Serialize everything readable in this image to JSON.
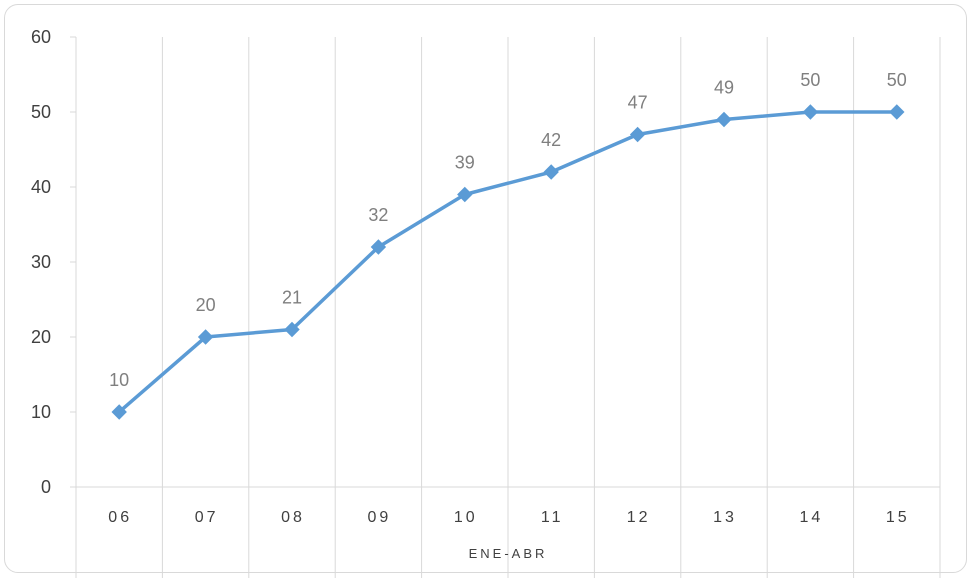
{
  "chart_data": {
    "type": "line",
    "title": "",
    "xlabel": "ENE-ABR",
    "ylabel": "",
    "categories": [
      "06",
      "07",
      "08",
      "09",
      "10",
      "11",
      "12",
      "13",
      "14",
      "15"
    ],
    "series": [
      {
        "values": [
          10,
          20,
          21,
          32,
          39,
          42,
          47,
          49,
          50,
          50
        ],
        "color": "#5b9bd5"
      }
    ],
    "ylim": [
      0,
      60
    ],
    "yticks": [
      0,
      10,
      20,
      30,
      40,
      50,
      60
    ],
    "grid": "vertical",
    "legend": "none",
    "marker": "diamond",
    "data_labels": true,
    "colors": {
      "line": "#5b9bd5",
      "grid": "#d9d9d9",
      "label": "#7f7f7f"
    }
  }
}
